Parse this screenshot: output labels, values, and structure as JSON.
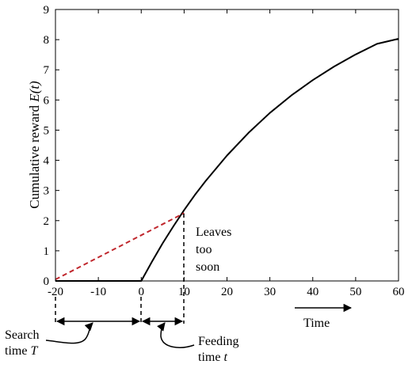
{
  "chart_data": {
    "type": "line",
    "ylabel": "Cumulative reward ",
    "ylabel_var": "E(t)",
    "xlim": [
      -20,
      60
    ],
    "ylim": [
      0,
      9
    ],
    "x_ticks": [
      -20,
      -10,
      0,
      10,
      20,
      30,
      40,
      50,
      60
    ],
    "y_ticks": [
      0,
      1,
      2,
      3,
      4,
      5,
      6,
      7,
      8,
      9
    ],
    "grid": false,
    "series": [
      {
        "x": [
          -20,
          0,
          2.5,
          5,
          7.5,
          10,
          12.5,
          15,
          20,
          25,
          30,
          35,
          40,
          45,
          50,
          55,
          60
        ],
        "y": [
          0,
          0,
          0.64,
          1.25,
          1.81,
          2.35,
          2.85,
          3.31,
          4.16,
          4.91,
          5.57,
          6.15,
          6.66,
          7.11,
          7.51,
          7.86,
          8.03
        ],
        "color": "#000000",
        "style": "solid"
      },
      {
        "x": [
          -20,
          10
        ],
        "y": [
          0.05,
          2.25
        ],
        "color": "#c0272d",
        "style": "dashed"
      }
    ],
    "annotations": {
      "leaves": [
        "Leaves",
        "too",
        "soon"
      ],
      "time": "Time",
      "search": [
        "Search",
        "time "
      ],
      "search_var": "T",
      "feeding": [
        "Feeding",
        "time "
      ],
      "feeding_var": "t"
    }
  }
}
